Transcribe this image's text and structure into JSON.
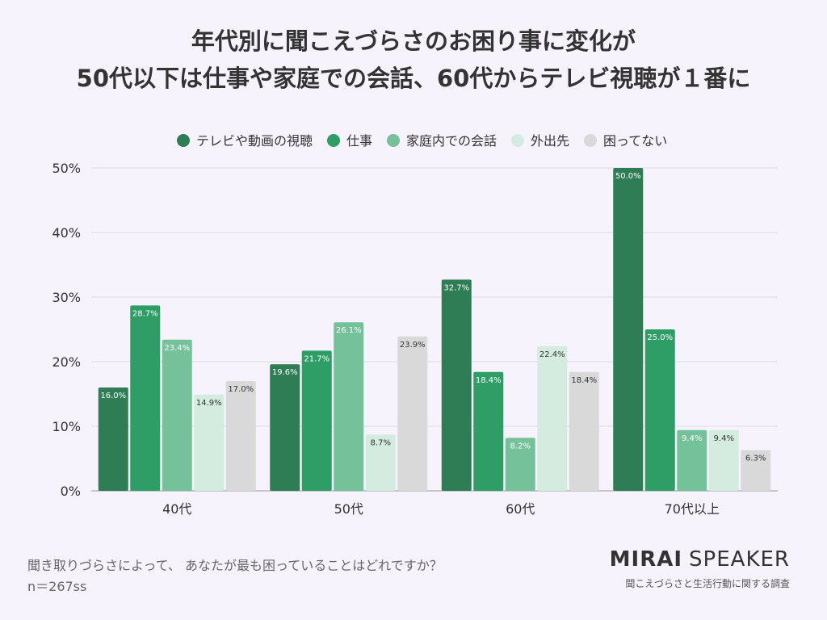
{
  "title": {
    "line1": "年代別に聞こえづらさのお困り事に変化が",
    "line2": "50代以下は仕事や家庭での会話、60代からテレビ視聴が１番に"
  },
  "chart_data": {
    "type": "bar",
    "categories": [
      "40代",
      "50代",
      "60代",
      "70代以上"
    ],
    "series": [
      {
        "name": "テレビや動画の視聴",
        "color": "#2e7d55",
        "values": [
          16.0,
          19.6,
          32.7,
          50.0
        ],
        "labels": [
          "16.0%",
          "19.6%",
          "32.7%",
          "50.0%"
        ]
      },
      {
        "name": "仕事",
        "color": "#2f9e66",
        "values": [
          28.7,
          21.7,
          18.4,
          25.0
        ],
        "labels": [
          "28.7%",
          "21.7%",
          "18.4%",
          "25.0%"
        ]
      },
      {
        "name": "家庭内での会話",
        "color": "#74c19a",
        "values": [
          23.4,
          26.1,
          8.2,
          9.4
        ],
        "labels": [
          "23.4%",
          "26.1%",
          "8.2%",
          "9.4%"
        ]
      },
      {
        "name": "外出先",
        "color": "#d3ecdf",
        "values": [
          14.9,
          8.7,
          22.4,
          9.4
        ],
        "labels": [
          "14.9%",
          "8.7%",
          "22.4%",
          "9.4%"
        ]
      },
      {
        "name": "困ってない",
        "color": "#d9d9d9",
        "values": [
          17.0,
          23.9,
          18.4,
          6.3
        ],
        "labels": [
          "17.0%",
          "23.9%",
          "18.4%",
          "6.3%"
        ]
      }
    ],
    "ylim": [
      0,
      50
    ],
    "yticks": [
      0,
      10,
      20,
      30,
      40,
      50
    ],
    "ytick_labels": [
      "0%",
      "10%",
      "20%",
      "30%",
      "40%",
      "50%"
    ],
    "legend_position": "top",
    "grid": true
  },
  "footer": {
    "question": "聞き取りづらさによって、 あなたが最も困っていることはどれですか？",
    "sample": "n＝267ss"
  },
  "brand": {
    "name_bold": "MIRAI",
    "name_light": "SPEAKER",
    "subtitle": "聞こえづらさと生活行動に関する調査"
  }
}
